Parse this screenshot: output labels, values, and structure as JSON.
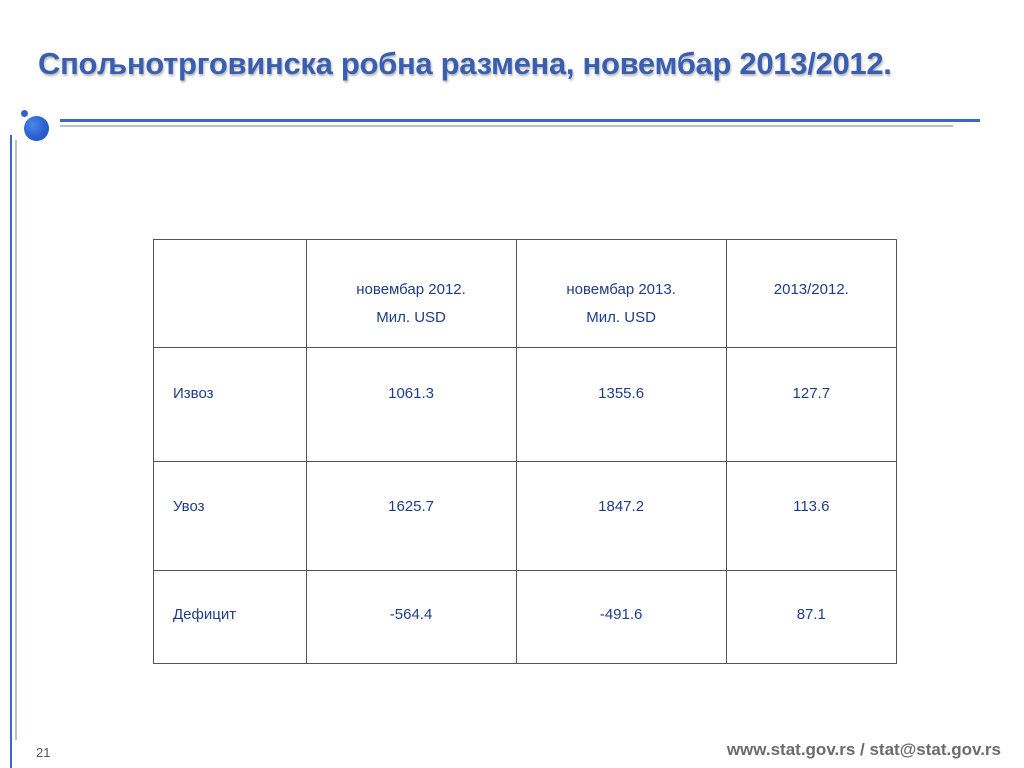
{
  "slide": {
    "title": "Спољнотрговинска робна размена, новембар 2013/2012.",
    "number": "21",
    "footer": "www.stat.gov.rs / stat@stat.gov.rs"
  },
  "table": {
    "headers": [
      {
        "line1": "",
        "line2": ""
      },
      {
        "line1": "новембар 2012.",
        "line2": "Мил. USD"
      },
      {
        "line1": "новембар 2013.",
        "line2": "Мил. USD"
      },
      {
        "line1": "2013/2012.",
        "line2": ""
      }
    ],
    "rows": [
      {
        "label": "Извоз",
        "v2012": "1061.3",
        "v2013": "1355.6",
        "index": "127.7"
      },
      {
        "label": "Увоз",
        "v2012": "1625.7",
        "v2013": "1847.2",
        "index": "113.6"
      },
      {
        "label": "Дефицит",
        "v2012": "-564.4",
        "v2013": "-491.6",
        "index": "87.1"
      }
    ]
  },
  "colors": {
    "title": "#3a5fb0",
    "accent_blue": "#3d67c4",
    "rule_grey": "#b9bfca",
    "table_text": "#1f3c86",
    "footer": "#6b6b6b"
  }
}
